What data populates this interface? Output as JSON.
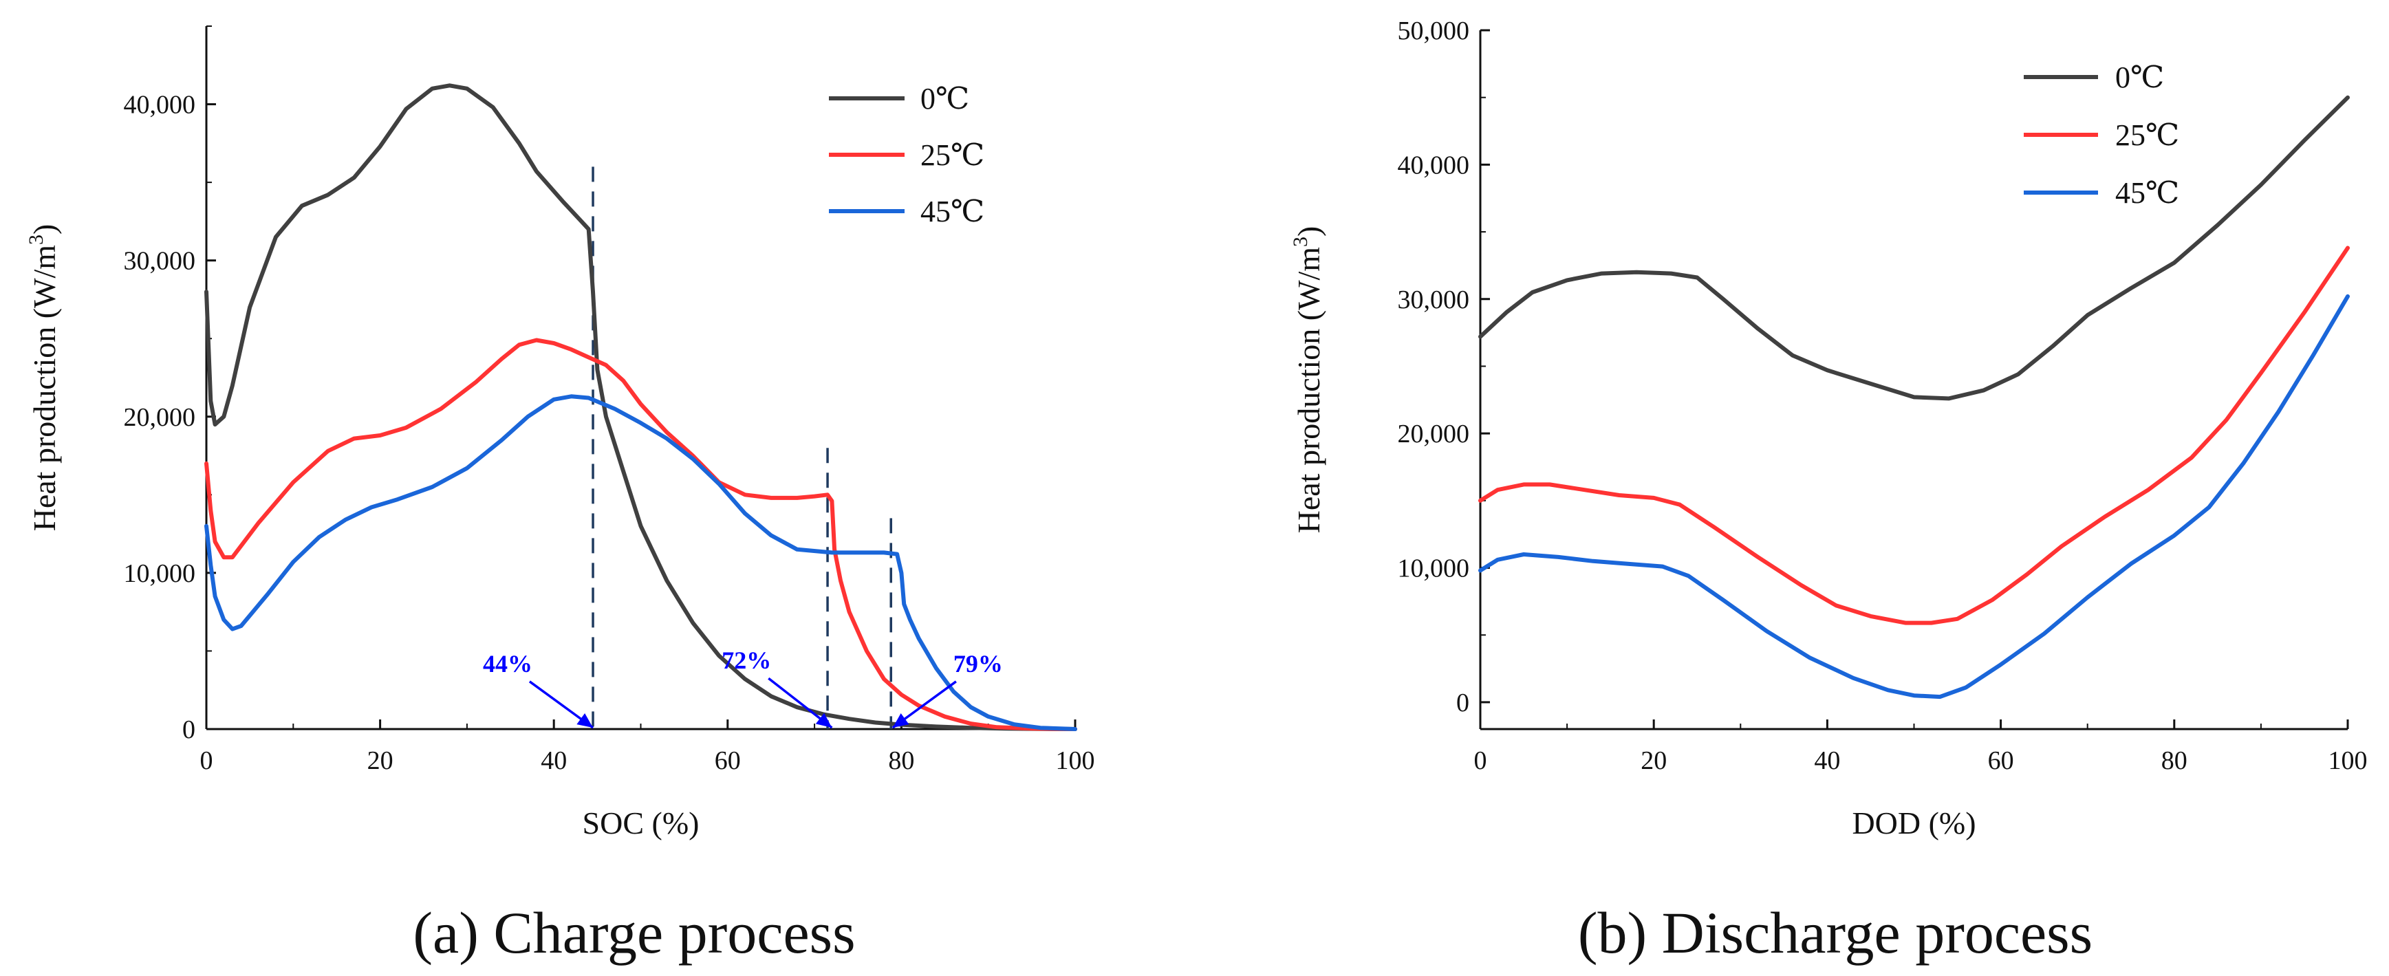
{
  "chart_data": [
    {
      "type": "line",
      "caption": "(a) Charge process",
      "xlabel": "SOC (%)",
      "ylabel": "Heat production (W/m",
      "ylabel_sup": "3",
      "ylabel_close": ")",
      "xlim": [
        0,
        100
      ],
      "ylim": [
        0,
        45000
      ],
      "x_ticks": [
        0,
        20,
        40,
        60,
        80,
        100
      ],
      "x_tick_labels": [
        "0",
        "20",
        "40",
        "60",
        "80",
        "100"
      ],
      "y_ticks": [
        0,
        10000,
        20000,
        30000,
        40000
      ],
      "y_tick_labels": [
        "0",
        "10,000",
        "20,000",
        "30,000",
        "40,000"
      ],
      "legend_position": "top-right",
      "series": [
        {
          "name": "0℃",
          "color": "#404040",
          "points": [
            [
              0,
              28000
            ],
            [
              0.5,
              21000
            ],
            [
              1,
              19500
            ],
            [
              2,
              20000
            ],
            [
              3,
              22000
            ],
            [
              5,
              27000
            ],
            [
              8,
              31500
            ],
            [
              11,
              33500
            ],
            [
              14,
              34200
            ],
            [
              17,
              35300
            ],
            [
              20,
              37300
            ],
            [
              23,
              39700
            ],
            [
              26,
              41000
            ],
            [
              28,
              41200
            ],
            [
              30,
              41000
            ],
            [
              33,
              39800
            ],
            [
              36,
              37500
            ],
            [
              38,
              35700
            ],
            [
              41,
              33800
            ],
            [
              43,
              32600
            ],
            [
              44,
              32000
            ],
            [
              44.5,
              28000
            ],
            [
              45,
              23000
            ],
            [
              46,
              20000
            ],
            [
              48,
              16500
            ],
            [
              50,
              13000
            ],
            [
              53,
              9500
            ],
            [
              56,
              6800
            ],
            [
              59,
              4700
            ],
            [
              62,
              3200
            ],
            [
              65,
              2100
            ],
            [
              68,
              1400
            ],
            [
              71,
              950
            ],
            [
              74,
              650
            ],
            [
              77,
              420
            ],
            [
              80,
              280
            ],
            [
              84,
              160
            ],
            [
              88,
              80
            ],
            [
              92,
              30
            ],
            [
              96,
              10
            ],
            [
              100,
              0
            ]
          ]
        },
        {
          "name": "25℃",
          "color": "#ff3333",
          "points": [
            [
              0,
              17000
            ],
            [
              0.5,
              14000
            ],
            [
              1,
              12000
            ],
            [
              2,
              11000
            ],
            [
              3,
              11000
            ],
            [
              6,
              13200
            ],
            [
              10,
              15800
            ],
            [
              14,
              17800
            ],
            [
              17,
              18600
            ],
            [
              20,
              18800
            ],
            [
              23,
              19300
            ],
            [
              27,
              20500
            ],
            [
              31,
              22200
            ],
            [
              34,
              23700
            ],
            [
              36,
              24600
            ],
            [
              38,
              24900
            ],
            [
              40,
              24700
            ],
            [
              42,
              24300
            ],
            [
              44,
              23800
            ],
            [
              46,
              23300
            ],
            [
              48,
              22300
            ],
            [
              50,
              20800
            ],
            [
              53,
              19000
            ],
            [
              56,
              17500
            ],
            [
              59,
              15800
            ],
            [
              62,
              15000
            ],
            [
              65,
              14800
            ],
            [
              68,
              14800
            ],
            [
              70,
              14900
            ],
            [
              71.5,
              15000
            ],
            [
              72,
              14600
            ],
            [
              72.3,
              11500
            ],
            [
              73,
              9500
            ],
            [
              74,
              7500
            ],
            [
              76,
              5000
            ],
            [
              78,
              3200
            ],
            [
              80,
              2200
            ],
            [
              82,
              1500
            ],
            [
              85,
              800
            ],
            [
              88,
              350
            ],
            [
              91,
              120
            ],
            [
              95,
              30
            ],
            [
              100,
              0
            ]
          ]
        },
        {
          "name": "45℃",
          "color": "#1a66d9",
          "points": [
            [
              0,
              13000
            ],
            [
              0.5,
              10500
            ],
            [
              1,
              8500
            ],
            [
              2,
              7000
            ],
            [
              3,
              6400
            ],
            [
              4,
              6600
            ],
            [
              7,
              8600
            ],
            [
              10,
              10700
            ],
            [
              13,
              12300
            ],
            [
              16,
              13400
            ],
            [
              19,
              14200
            ],
            [
              22,
              14700
            ],
            [
              26,
              15500
            ],
            [
              30,
              16700
            ],
            [
              34,
              18500
            ],
            [
              37,
              20000
            ],
            [
              40,
              21100
            ],
            [
              42,
              21300
            ],
            [
              44,
              21200
            ],
            [
              47,
              20500
            ],
            [
              50,
              19600
            ],
            [
              53,
              18600
            ],
            [
              56,
              17300
            ],
            [
              59,
              15700
            ],
            [
              62,
              13800
            ],
            [
              65,
              12400
            ],
            [
              68,
              11500
            ],
            [
              72,
              11300
            ],
            [
              75,
              11300
            ],
            [
              78,
              11300
            ],
            [
              79.5,
              11200
            ],
            [
              80,
              10000
            ],
            [
              80.3,
              8000
            ],
            [
              81,
              7000
            ],
            [
              82,
              5800
            ],
            [
              84,
              3900
            ],
            [
              86,
              2400
            ],
            [
              88,
              1400
            ],
            [
              90,
              800
            ],
            [
              93,
              300
            ],
            [
              96,
              80
            ],
            [
              100,
              0
            ]
          ]
        }
      ],
      "vlines": [
        {
          "x": 44.5,
          "y_top": 36000
        },
        {
          "x": 71.5,
          "y_top": 18000
        },
        {
          "x": 78.8,
          "y_top": 13500
        }
      ],
      "annotations": [
        {
          "text": "44%",
          "x": 44.5,
          "text_x": 38,
          "text_y": 3400,
          "anchor": "end"
        },
        {
          "text": "72%",
          "x": 72,
          "text_x": 65.5,
          "text_y": 3600,
          "anchor": "end"
        },
        {
          "text": "79%",
          "x": 79,
          "text_x": 85.5,
          "text_y": 3400,
          "anchor": "start"
        }
      ]
    },
    {
      "type": "line",
      "caption": "(b) Discharge process",
      "xlabel": "DOD (%)",
      "ylabel": "Heat production (W/m",
      "ylabel_sup": "3",
      "ylabel_close": ")",
      "xlim": [
        0,
        100
      ],
      "ylim": [
        -2000,
        50000
      ],
      "x_ticks": [
        0,
        20,
        40,
        60,
        80,
        100
      ],
      "x_tick_labels": [
        "0",
        "20",
        "40",
        "60",
        "80",
        "100"
      ],
      "y_ticks": [
        0,
        10000,
        20000,
        30000,
        40000,
        50000
      ],
      "y_tick_labels": [
        "0",
        "10,000",
        "20,000",
        "30,000",
        "40,000",
        "50,000"
      ],
      "legend_position": "top-right",
      "series": [
        {
          "name": "0℃",
          "color": "#404040",
          "points": [
            [
              0,
              27200
            ],
            [
              3,
              29000
            ],
            [
              6,
              30500
            ],
            [
              10,
              31400
            ],
            [
              14,
              31900
            ],
            [
              18,
              32000
            ],
            [
              22,
              31900
            ],
            [
              25,
              31600
            ],
            [
              28,
              30000
            ],
            [
              32,
              27800
            ],
            [
              36,
              25800
            ],
            [
              40,
              24700
            ],
            [
              45,
              23700
            ],
            [
              50,
              22700
            ],
            [
              54,
              22600
            ],
            [
              58,
              23200
            ],
            [
              62,
              24400
            ],
            [
              66,
              26500
            ],
            [
              70,
              28800
            ],
            [
              75,
              30800
            ],
            [
              80,
              32700
            ],
            [
              85,
              35500
            ],
            [
              90,
              38500
            ],
            [
              95,
              41800
            ],
            [
              100,
              45000
            ]
          ]
        },
        {
          "name": "25℃",
          "color": "#ff3333",
          "points": [
            [
              0,
              15000
            ],
            [
              2,
              15800
            ],
            [
              5,
              16200
            ],
            [
              8,
              16200
            ],
            [
              12,
              15800
            ],
            [
              16,
              15400
            ],
            [
              20,
              15200
            ],
            [
              23,
              14700
            ],
            [
              27,
              13000
            ],
            [
              32,
              10800
            ],
            [
              37,
              8700
            ],
            [
              41,
              7200
            ],
            [
              45,
              6400
            ],
            [
              49,
              5900
            ],
            [
              52,
              5900
            ],
            [
              55,
              6200
            ],
            [
              59,
              7600
            ],
            [
              63,
              9500
            ],
            [
              67,
              11600
            ],
            [
              72,
              13800
            ],
            [
              77,
              15800
            ],
            [
              82,
              18200
            ],
            [
              86,
              21000
            ],
            [
              90,
              24500
            ],
            [
              95,
              29000
            ],
            [
              100,
              33800
            ]
          ]
        },
        {
          "name": "45℃",
          "color": "#1a66d9",
          "points": [
            [
              0,
              9800
            ],
            [
              2,
              10600
            ],
            [
              5,
              11000
            ],
            [
              9,
              10800
            ],
            [
              13,
              10500
            ],
            [
              17,
              10300
            ],
            [
              21,
              10100
            ],
            [
              24,
              9400
            ],
            [
              28,
              7600
            ],
            [
              33,
              5300
            ],
            [
              38,
              3300
            ],
            [
              43,
              1800
            ],
            [
              47,
              900
            ],
            [
              50,
              500
            ],
            [
              53,
              400
            ],
            [
              56,
              1100
            ],
            [
              60,
              2800
            ],
            [
              65,
              5100
            ],
            [
              70,
              7800
            ],
            [
              75,
              10300
            ],
            [
              80,
              12400
            ],
            [
              84,
              14500
            ],
            [
              88,
              17800
            ],
            [
              92,
              21600
            ],
            [
              96,
              25800
            ],
            [
              100,
              30200
            ]
          ]
        }
      ]
    }
  ]
}
